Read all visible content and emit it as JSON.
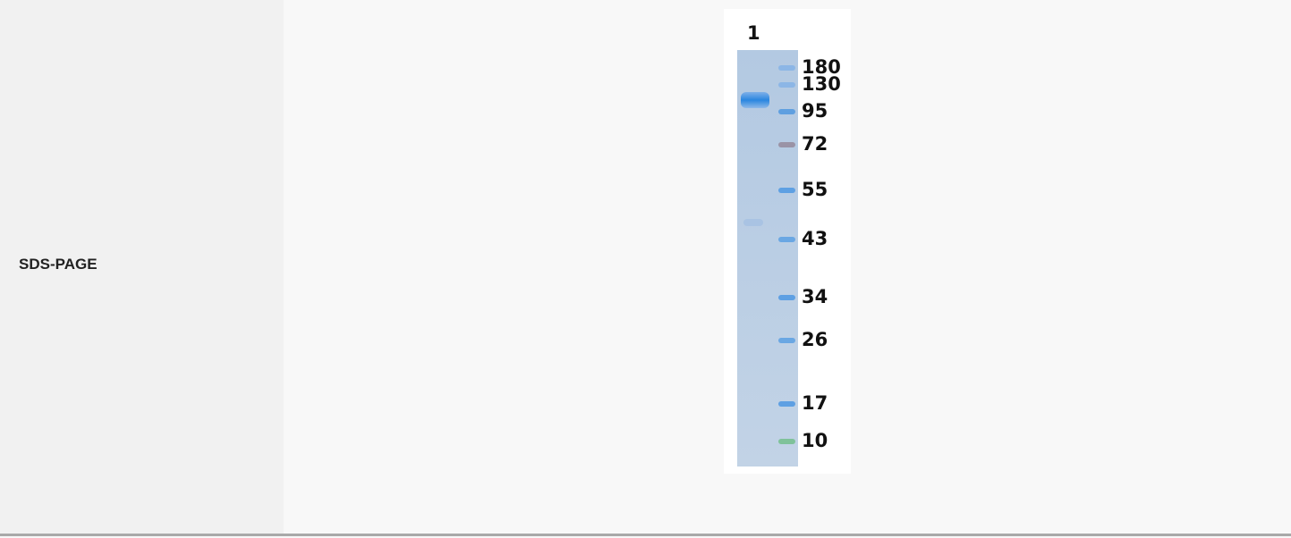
{
  "row": {
    "label": "SDS-PAGE",
    "gel": {
      "lane": "1",
      "markers": [
        "180",
        "130",
        "95",
        "72",
        "55",
        "43",
        "34",
        "26",
        "17",
        "10"
      ]
    }
  }
}
